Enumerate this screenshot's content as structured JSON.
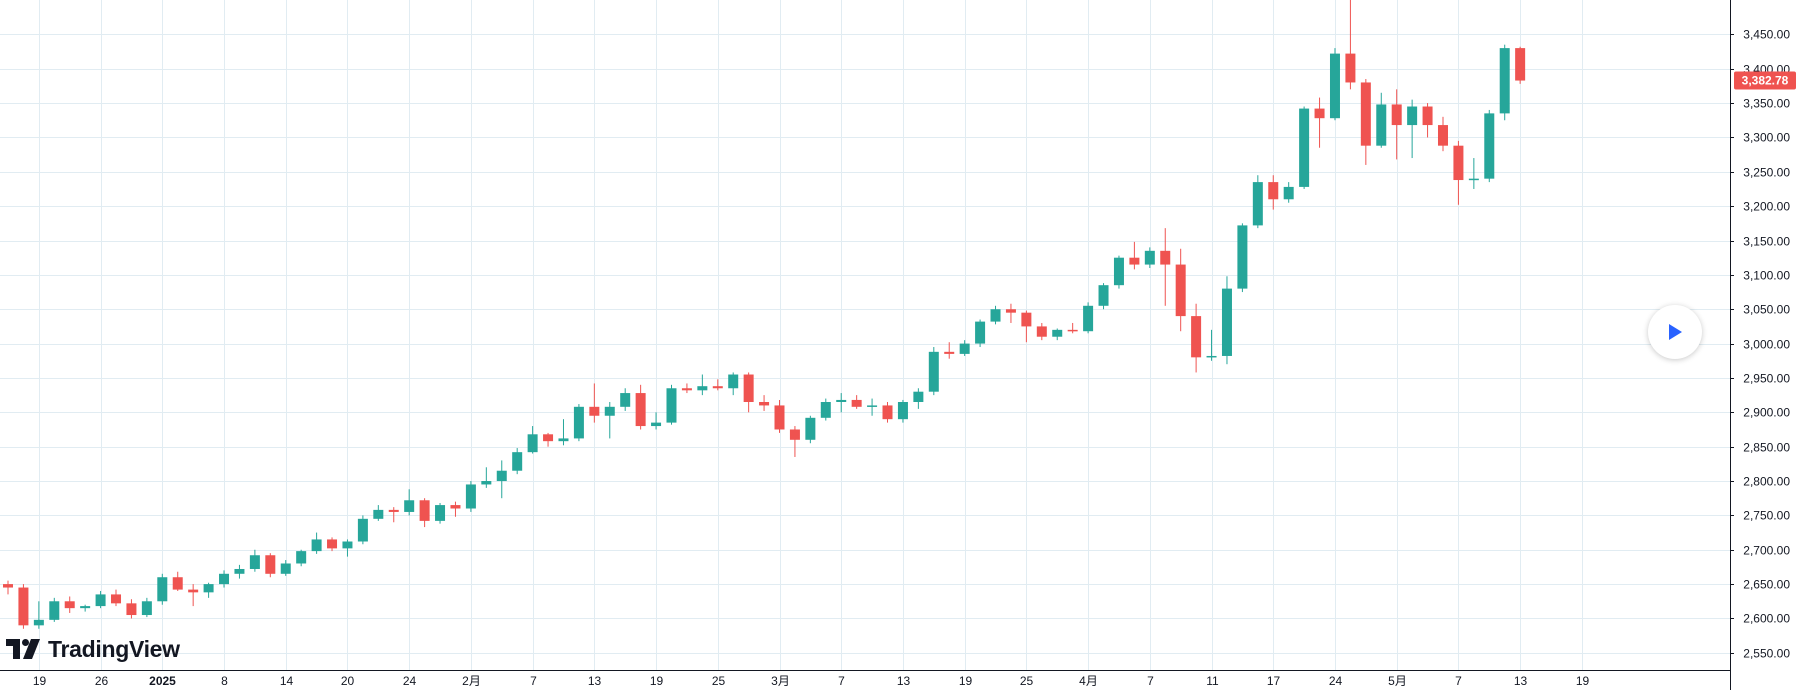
{
  "brand": {
    "name": "TradingView",
    "logo_icon": "tradingview-logo-icon"
  },
  "controls": {
    "play_icon": "play-icon"
  },
  "colors": {
    "up": "#26a69a",
    "down": "#ef5350",
    "grid": "#e1ecf2",
    "axis_text": "#131722"
  },
  "chart_data": {
    "type": "candlestick",
    "title": "",
    "xlabel": "",
    "ylabel": "",
    "ylim": [
      2525,
      3500
    ],
    "y_ticks": [
      2550,
      2600,
      2650,
      2700,
      2750,
      2800,
      2850,
      2900,
      2950,
      3000,
      3050,
      3100,
      3150,
      3200,
      3250,
      3300,
      3350,
      3400,
      3450
    ],
    "y_tick_labels": [
      "2,550.00",
      "2,600.00",
      "2,650.00",
      "2,700.00",
      "2,750.00",
      "2,800.00",
      "2,850.00",
      "2,900.00",
      "2,950.00",
      "3,000.00",
      "3,050.00",
      "3,100.00",
      "3,150.00",
      "3,200.00",
      "3,250.00",
      "3,300.00",
      "3,350.00",
      "3,400.00",
      "3,450.00"
    ],
    "x_tick_labels": [
      "19",
      "26",
      "2025",
      "8",
      "14",
      "20",
      "24",
      "2月",
      "7",
      "13",
      "19",
      "25",
      "3月",
      "7",
      "13",
      "19",
      "25",
      "4月",
      "7",
      "11",
      "17",
      "24",
      "5月",
      "7",
      "13",
      "19"
    ],
    "x_tick_positions": [
      2,
      6,
      10,
      14,
      18,
      22,
      26,
      30,
      34,
      38,
      42,
      46,
      50,
      54,
      58,
      62,
      66,
      70,
      74,
      78,
      82,
      86,
      90,
      94,
      98,
      102
    ],
    "last_price": 3382.78,
    "last_price_label": "3,382.78",
    "candles": [
      [
        2650,
        2655,
        2635,
        2645
      ],
      [
        2645,
        2650,
        2585,
        2590
      ],
      [
        2590,
        2625,
        2585,
        2598
      ],
      [
        2598,
        2630,
        2595,
        2625
      ],
      [
        2625,
        2632,
        2608,
        2615
      ],
      [
        2615,
        2620,
        2610,
        2618
      ],
      [
        2618,
        2640,
        2615,
        2635
      ],
      [
        2635,
        2642,
        2618,
        2622
      ],
      [
        2622,
        2628,
        2600,
        2605
      ],
      [
        2605,
        2630,
        2602,
        2625
      ],
      [
        2625,
        2665,
        2620,
        2660
      ],
      [
        2660,
        2668,
        2640,
        2642
      ],
      [
        2642,
        2650,
        2618,
        2638
      ],
      [
        2638,
        2652,
        2630,
        2650
      ],
      [
        2650,
        2670,
        2645,
        2665
      ],
      [
        2665,
        2678,
        2658,
        2672
      ],
      [
        2672,
        2700,
        2668,
        2692
      ],
      [
        2692,
        2695,
        2660,
        2665
      ],
      [
        2665,
        2685,
        2662,
        2680
      ],
      [
        2680,
        2700,
        2676,
        2698
      ],
      [
        2698,
        2725,
        2694,
        2715
      ],
      [
        2715,
        2718,
        2698,
        2702
      ],
      [
        2702,
        2715,
        2690,
        2712
      ],
      [
        2712,
        2750,
        2708,
        2745
      ],
      [
        2745,
        2765,
        2742,
        2758
      ],
      [
        2758,
        2762,
        2740,
        2755
      ],
      [
        2755,
        2788,
        2750,
        2772
      ],
      [
        2772,
        2775,
        2733,
        2742
      ],
      [
        2742,
        2768,
        2738,
        2765
      ],
      [
        2765,
        2770,
        2748,
        2760
      ],
      [
        2760,
        2800,
        2755,
        2795
      ],
      [
        2795,
        2820,
        2790,
        2800
      ],
      [
        2800,
        2830,
        2775,
        2815
      ],
      [
        2815,
        2848,
        2810,
        2842
      ],
      [
        2842,
        2880,
        2840,
        2868
      ],
      [
        2868,
        2870,
        2850,
        2858
      ],
      [
        2858,
        2890,
        2852,
        2862
      ],
      [
        2862,
        2912,
        2858,
        2908
      ],
      [
        2908,
        2942,
        2885,
        2895
      ],
      [
        2895,
        2915,
        2862,
        2908
      ],
      [
        2908,
        2935,
        2902,
        2928
      ],
      [
        2928,
        2940,
        2875,
        2880
      ],
      [
        2880,
        2900,
        2875,
        2885
      ],
      [
        2885,
        2940,
        2882,
        2935
      ],
      [
        2935,
        2942,
        2928,
        2932
      ],
      [
        2932,
        2955,
        2925,
        2938
      ],
      [
        2938,
        2948,
        2932,
        2935
      ],
      [
        2935,
        2958,
        2925,
        2955
      ],
      [
        2955,
        2958,
        2900,
        2915
      ],
      [
        2915,
        2925,
        2902,
        2910
      ],
      [
        2910,
        2918,
        2870,
        2875
      ],
      [
        2875,
        2880,
        2835,
        2860
      ],
      [
        2860,
        2895,
        2855,
        2892
      ],
      [
        2892,
        2920,
        2888,
        2915
      ],
      [
        2915,
        2928,
        2900,
        2918
      ],
      [
        2918,
        2925,
        2905,
        2908
      ],
      [
        2908,
        2920,
        2895,
        2910
      ],
      [
        2910,
        2915,
        2885,
        2890
      ],
      [
        2890,
        2918,
        2885,
        2915
      ],
      [
        2915,
        2935,
        2905,
        2930
      ],
      [
        2930,
        2995,
        2925,
        2988
      ],
      [
        2988,
        3002,
        2978,
        2985
      ],
      [
        2985,
        3005,
        2982,
        3000
      ],
      [
        3000,
        3035,
        2995,
        3032
      ],
      [
        3032,
        3055,
        3028,
        3050
      ],
      [
        3050,
        3058,
        3030,
        3045
      ],
      [
        3045,
        3048,
        3002,
        3025
      ],
      [
        3025,
        3030,
        3005,
        3010
      ],
      [
        3010,
        3022,
        3005,
        3020
      ],
      [
        3020,
        3030,
        3015,
        3018
      ],
      [
        3018,
        3060,
        3015,
        3055
      ],
      [
        3055,
        3088,
        3050,
        3085
      ],
      [
        3085,
        3128,
        3080,
        3125
      ],
      [
        3125,
        3148,
        3108,
        3115
      ],
      [
        3115,
        3140,
        3110,
        3135
      ],
      [
        3135,
        3168,
        3055,
        3115
      ],
      [
        3115,
        3138,
        3018,
        3040
      ],
      [
        3040,
        3058,
        2958,
        2980
      ],
      [
        2980,
        3020,
        2975,
        2982
      ],
      [
        2982,
        3098,
        2970,
        3080
      ],
      [
        3080,
        3175,
        3075,
        3172
      ],
      [
        3172,
        3245,
        3168,
        3235
      ],
      [
        3235,
        3245,
        3195,
        3210
      ],
      [
        3210,
        3235,
        3205,
        3228
      ],
      [
        3228,
        3345,
        3225,
        3342
      ],
      [
        3342,
        3358,
        3285,
        3328
      ],
      [
        3328,
        3430,
        3325,
        3422
      ],
      [
        3422,
        3500,
        3370,
        3380
      ],
      [
        3380,
        3385,
        3260,
        3288
      ],
      [
        3288,
        3365,
        3285,
        3348
      ],
      [
        3348,
        3370,
        3268,
        3318
      ],
      [
        3318,
        3355,
        3270,
        3345
      ],
      [
        3345,
        3350,
        3300,
        3318
      ],
      [
        3318,
        3330,
        3280,
        3288
      ],
      [
        3288,
        3295,
        3202,
        3238
      ],
      [
        3238,
        3270,
        3225,
        3240
      ],
      [
        3240,
        3340,
        3235,
        3335
      ],
      [
        3335,
        3435,
        3325,
        3430
      ],
      [
        3430,
        3432,
        3378,
        3382.78
      ]
    ]
  }
}
